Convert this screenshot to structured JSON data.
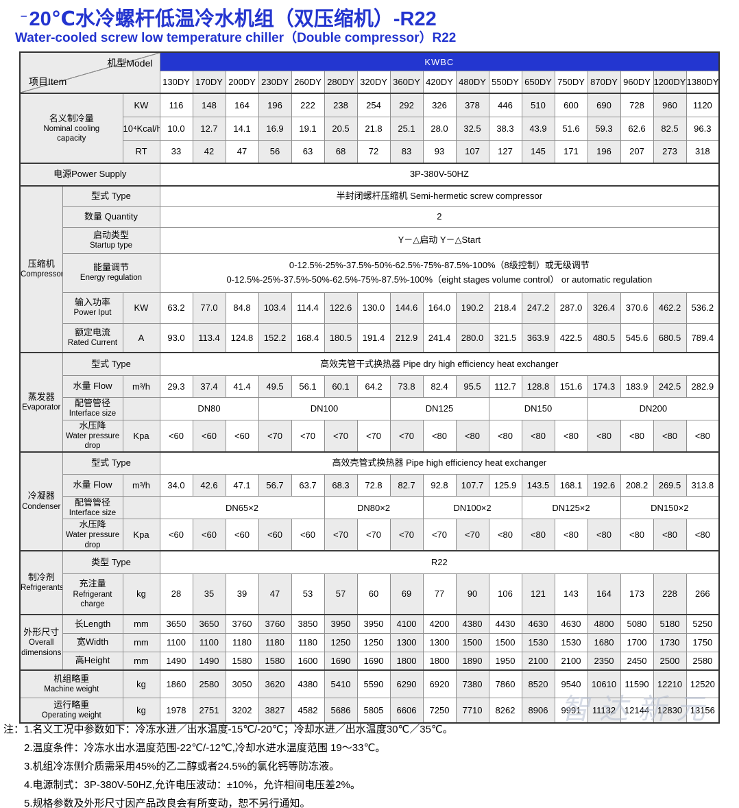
{
  "title": {
    "dash": "–",
    "main": "20℃水冷螺杆低温冷水机组（双压缩机）-R22"
  },
  "subtitle": "Water-cooled screw low temperature chiller（Double compressor）R22",
  "colors": {
    "accent_blue": "#2334cf",
    "band_blue": "#2336d0",
    "cell_gray": "#ebebeb"
  },
  "table": {
    "corner": {
      "model_label": "机型Model",
      "item_label": "项目Item"
    },
    "brand": "KWBC",
    "models": [
      "130DY",
      "170DY",
      "200DY",
      "230DY",
      "260DY",
      "280DY",
      "320DY",
      "360DY",
      "420DY",
      "480DY",
      "550DY",
      "650DY",
      "750DY",
      "870DY",
      "960DY",
      "1200DY",
      "1380DY"
    ],
    "rows": [
      {
        "id": "kw",
        "group": {
          "text": "名义制冷量\nNominal cooling\ncapacity",
          "rows": 3,
          "cols": 2
        },
        "unit": "KW",
        "values": [
          "116",
          "148",
          "164",
          "196",
          "222",
          "238",
          "254",
          "292",
          "326",
          "378",
          "446",
          "510",
          "600",
          "690",
          "728",
          "960",
          "1120"
        ]
      },
      {
        "id": "kcal",
        "unit": "10⁴Kcal/h",
        "values": [
          "10.0",
          "12.7",
          "14.1",
          "16.9",
          "19.1",
          "20.5",
          "21.8",
          "25.1",
          "28.0",
          "32.5",
          "38.3",
          "43.9",
          "51.6",
          "59.3",
          "62.6",
          "82.5",
          "96.3"
        ]
      },
      {
        "id": "rt",
        "unit": "RT",
        "values": [
          "33",
          "42",
          "47",
          "56",
          "63",
          "68",
          "72",
          "83",
          "93",
          "107",
          "127",
          "145",
          "171",
          "196",
          "207",
          "273",
          "318"
        ]
      },
      {
        "id": "power_supply",
        "full_label": "电源Power Supply",
        "full_label_cols": 3,
        "merged": "3P-380V-50HZ"
      },
      {
        "id": "comp_type",
        "group": {
          "text": "压缩机\nCompressor",
          "rows": 6,
          "cols": 1
        },
        "label": {
          "text": "型式  Type",
          "cols": 2,
          "align": "left"
        },
        "merged": "半封闭螺杆压缩机  Semi-hermetic screw compressor"
      },
      {
        "id": "comp_qty",
        "label": {
          "text": "数量  Quantity",
          "cols": 2,
          "align": "left"
        },
        "merged": "2"
      },
      {
        "id": "comp_startup",
        "label": {
          "text": "启动类型\nStartup type",
          "cols": 2,
          "align": "left"
        },
        "merged": "Y－△启动  Y－△Start"
      },
      {
        "id": "comp_energy",
        "label": {
          "text": "能量调节\nEnergy regulation",
          "cols": 2,
          "align": "left"
        },
        "merged": "0-12.5%-25%-37.5%-50%-62.5%-75%-87.5%-100%（8级控制）或无级调节\n0-12.5%-25%-37.5%-50%-62.5%-75%-87.5%-100%（eight stages volume control） or automatic regulation"
      },
      {
        "id": "comp_power",
        "label": {
          "text": "输入功率\nPower Iput",
          "align": "center"
        },
        "unit": "KW",
        "values": [
          "63.2",
          "77.0",
          "84.8",
          "103.4",
          "114.4",
          "122.6",
          "130.0",
          "144.6",
          "164.0",
          "190.2",
          "218.4",
          "247.2",
          "287.0",
          "326.4",
          "370.6",
          "462.2",
          "536.2"
        ]
      },
      {
        "id": "comp_current",
        "label": {
          "text": "额定电流\nRated Current",
          "align": "center"
        },
        "unit": "A",
        "values": [
          "93.0",
          "113.4",
          "124.8",
          "152.2",
          "168.4",
          "180.5",
          "191.4",
          "212.9",
          "241.4",
          "280.0",
          "321.5",
          "363.9",
          "422.5",
          "480.5",
          "545.6",
          "680.5",
          "789.4"
        ]
      },
      {
        "id": "evap_type",
        "group": {
          "text": "蒸发器\nEvaporator",
          "rows": 4,
          "cols": 1
        },
        "label": {
          "text": "型式  Type",
          "cols": 2,
          "align": "left"
        },
        "merged": "高效壳管干式换热器  Pipe dry high efficiency heat exchanger"
      },
      {
        "id": "evap_flow",
        "label": {
          "text": "水量  Flow",
          "align": "left"
        },
        "unit": "m³/h",
        "values": [
          "29.3",
          "37.4",
          "41.4",
          "49.5",
          "56.1",
          "60.1",
          "64.2",
          "73.8",
          "82.4",
          "95.5",
          "112.7",
          "128.8",
          "151.6",
          "174.3",
          "183.9",
          "242.5",
          "282.9"
        ]
      },
      {
        "id": "evap_pipe",
        "label": {
          "text": "配管管径\nInterface size",
          "align": "left"
        },
        "unit": "",
        "spans": [
          {
            "text": "DN80",
            "cols": 3
          },
          {
            "text": "DN100",
            "cols": 4
          },
          {
            "text": "DN125",
            "cols": 3
          },
          {
            "text": "DN150",
            "cols": 3
          },
          {
            "text": "DN200",
            "cols": 4
          }
        ]
      },
      {
        "id": "evap_drop",
        "label": {
          "text": "水压降\nWater pressure drop",
          "align": "center"
        },
        "unit": "Kpa",
        "values": [
          "<60",
          "<60",
          "<60",
          "<70",
          "<70",
          "<70",
          "<70",
          "<70",
          "<80",
          "<80",
          "<80",
          "<80",
          "<80",
          "<80",
          "<80",
          "<80",
          "<80"
        ]
      },
      {
        "id": "cond_type",
        "group": {
          "text": "冷凝器\nCondenser",
          "rows": 4,
          "cols": 1
        },
        "label": {
          "text": "型式  Type",
          "cols": 2,
          "align": "left"
        },
        "merged": "高效壳管式换热器  Pipe  high efficiency heat exchanger"
      },
      {
        "id": "cond_flow",
        "label": {
          "text": "水量  Flow",
          "align": "left"
        },
        "unit": "m³/h",
        "values": [
          "34.0",
          "42.6",
          "47.1",
          "56.7",
          "63.7",
          "68.3",
          "72.8",
          "82.7",
          "92.8",
          "107.7",
          "125.9",
          "143.5",
          "168.1",
          "192.6",
          "208.2",
          "269.5",
          "313.8"
        ]
      },
      {
        "id": "cond_pipe",
        "label": {
          "text": "配管管径\nInterface size",
          "align": "left"
        },
        "unit": "",
        "spans": [
          {
            "text": "DN65×2",
            "cols": 5
          },
          {
            "text": "DN80×2",
            "cols": 3
          },
          {
            "text": "DN100×2",
            "cols": 3
          },
          {
            "text": "DN125×2",
            "cols": 3
          },
          {
            "text": "DN150×2",
            "cols": 3
          }
        ]
      },
      {
        "id": "cond_drop",
        "label": {
          "text": "水压降\nWater pressure drop",
          "align": "center"
        },
        "unit": "Kpa",
        "values": [
          "<60",
          "<60",
          "<60",
          "<60",
          "<60",
          "<70",
          "<70",
          "<70",
          "<70",
          "<70",
          "<80",
          "<80",
          "<80",
          "<80",
          "<80",
          "<80",
          "<80"
        ]
      },
      {
        "id": "refr_type",
        "group": {
          "text": "制冷剂\nRefrigerants",
          "rows": 2,
          "cols": 1
        },
        "label": {
          "text": "类型  Type",
          "cols": 2,
          "align": "left"
        },
        "merged": "R22"
      },
      {
        "id": "refr_charge",
        "label": {
          "text": "充注量\nRefrigerant\ncharge",
          "align": "left"
        },
        "unit": "kg",
        "values": [
          "28",
          "35",
          "39",
          "47",
          "53",
          "57",
          "60",
          "69",
          "77",
          "90",
          "106",
          "121",
          "143",
          "164",
          "173",
          "228",
          "266"
        ]
      },
      {
        "id": "dim_length",
        "group": {
          "text": "外形尺寸\nOverall\ndimensions",
          "rows": 3,
          "cols": 1
        },
        "label": {
          "text": "长Length",
          "align": "left"
        },
        "unit": "mm",
        "values": [
          "3650",
          "3650",
          "3760",
          "3760",
          "3850",
          "3950",
          "3950",
          "4100",
          "4200",
          "4380",
          "4430",
          "4630",
          "4630",
          "4800",
          "5080",
          "5180",
          "5250"
        ]
      },
      {
        "id": "dim_width",
        "label": {
          "text": "宽Width",
          "align": "left"
        },
        "unit": "mm",
        "values": [
          "1100",
          "1100",
          "1180",
          "1180",
          "1180",
          "1250",
          "1250",
          "1300",
          "1300",
          "1500",
          "1500",
          "1530",
          "1530",
          "1680",
          "1700",
          "1730",
          "1750"
        ]
      },
      {
        "id": "dim_height",
        "label": {
          "text": "高Height",
          "align": "left"
        },
        "unit": "mm",
        "values": [
          "1490",
          "1490",
          "1580",
          "1580",
          "1600",
          "1690",
          "1690",
          "1800",
          "1800",
          "1890",
          "1950",
          "2100",
          "2100",
          "2350",
          "2450",
          "2500",
          "2580"
        ]
      },
      {
        "id": "machine_weight",
        "full_label": "机组略重\nMachine weight",
        "full_label_cols": 2,
        "unit": "kg",
        "values": [
          "1860",
          "2580",
          "3050",
          "3620",
          "4380",
          "5410",
          "5590",
          "6290",
          "6920",
          "7380",
          "7860",
          "8520",
          "9540",
          "10610",
          "11590",
          "12210",
          "12520"
        ]
      },
      {
        "id": "operating_weight",
        "full_label": "运行略重\nOperating weight",
        "full_label_cols": 2,
        "unit": "kg",
        "values": [
          "1978",
          "2751",
          "3202",
          "3827",
          "4582",
          "5686",
          "5805",
          "6606",
          "7250",
          "7710",
          "8262",
          "8906",
          "9991",
          "11132",
          "12144",
          "12830",
          "13156"
        ]
      }
    ]
  },
  "notes": {
    "prefix": "注：",
    "items": [
      "1.名义工况中参数如下：冷冻水进／出水温度-15℃/-20℃；冷却水进／出水温度30℃／35℃。",
      "2.温度条件：冷冻水出水温度范围-22℃/-12℃,冷却水进水温度范围 19～33℃。",
      "3.机组冷冻侧介质需采用45%的乙二醇或者24.5%的氯化钙等防冻液。",
      "4.电源制式：3P-380V-50HZ,允许电压波动：±10%，允许相间电压差2%。",
      "5.规格参数及外形尺寸因产品改良会有所变动，恕不另行通知。"
    ]
  },
  "watermark": "智达新元"
}
